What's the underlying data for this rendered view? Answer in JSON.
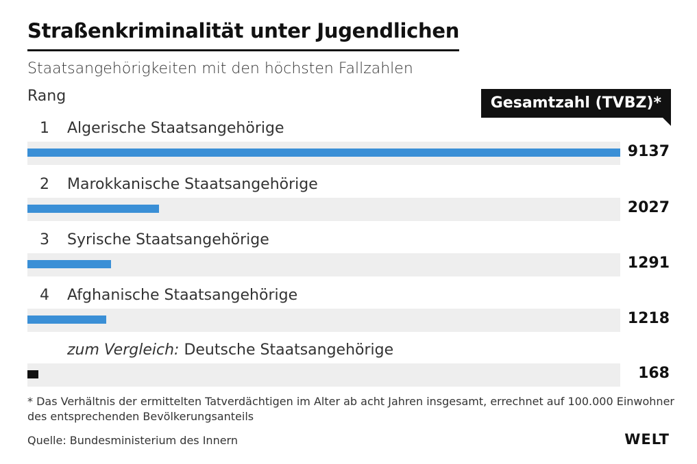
{
  "header": {
    "title": "Straßenkriminalität unter Jugendlichen",
    "subtitle": "Staatsangehörigkeiten mit den höchsten Fallzahlen",
    "rank_label": "Rang",
    "value_label": "Gesamtzahl (TVBZ)*"
  },
  "colors": {
    "accent": "#3a8fd6",
    "comparison": "#111111",
    "track": "#eeeeee"
  },
  "chart_data": {
    "type": "bar",
    "orientation": "horizontal",
    "categories": [
      "Algerische Staatsangehörige",
      "Marokkanische Staatsangehörige",
      "Syrische Staatsangehörige",
      "Afghanische Staatsangehörige",
      "Deutsche Staatsangehörige"
    ],
    "values": [
      9137,
      2027,
      1291,
      1218,
      168
    ],
    "xlim": [
      0,
      9137
    ],
    "grid": false,
    "legend": "none"
  },
  "rows": [
    {
      "rank": "1",
      "name": "Algerische Staatsangehörige",
      "value": "9137",
      "color": "#3a8fd6"
    },
    {
      "rank": "2",
      "name": "Marokkanische Staatsangehörige",
      "value": "2027",
      "color": "#3a8fd6"
    },
    {
      "rank": "3",
      "name": "Syrische Staatsangehörige",
      "value": "1291",
      "color": "#3a8fd6"
    },
    {
      "rank": "4",
      "name": "Afghanische Staatsangehörige",
      "value": "1218",
      "color": "#3a8fd6"
    },
    {
      "prefix": "zum Vergleich:",
      "name": "Deutsche Staatsangehörige",
      "value": "168",
      "color": "#111111"
    }
  ],
  "footnote": "* Das Verhältnis der ermittelten Tatverdächtigen im Alter ab acht Jahren insgesamt, errechnet auf 100.000 Einwohner des entsprechenden Bevölkerungsanteils",
  "source": "Quelle: Bundesministerium des Innern",
  "logo": "WELT"
}
